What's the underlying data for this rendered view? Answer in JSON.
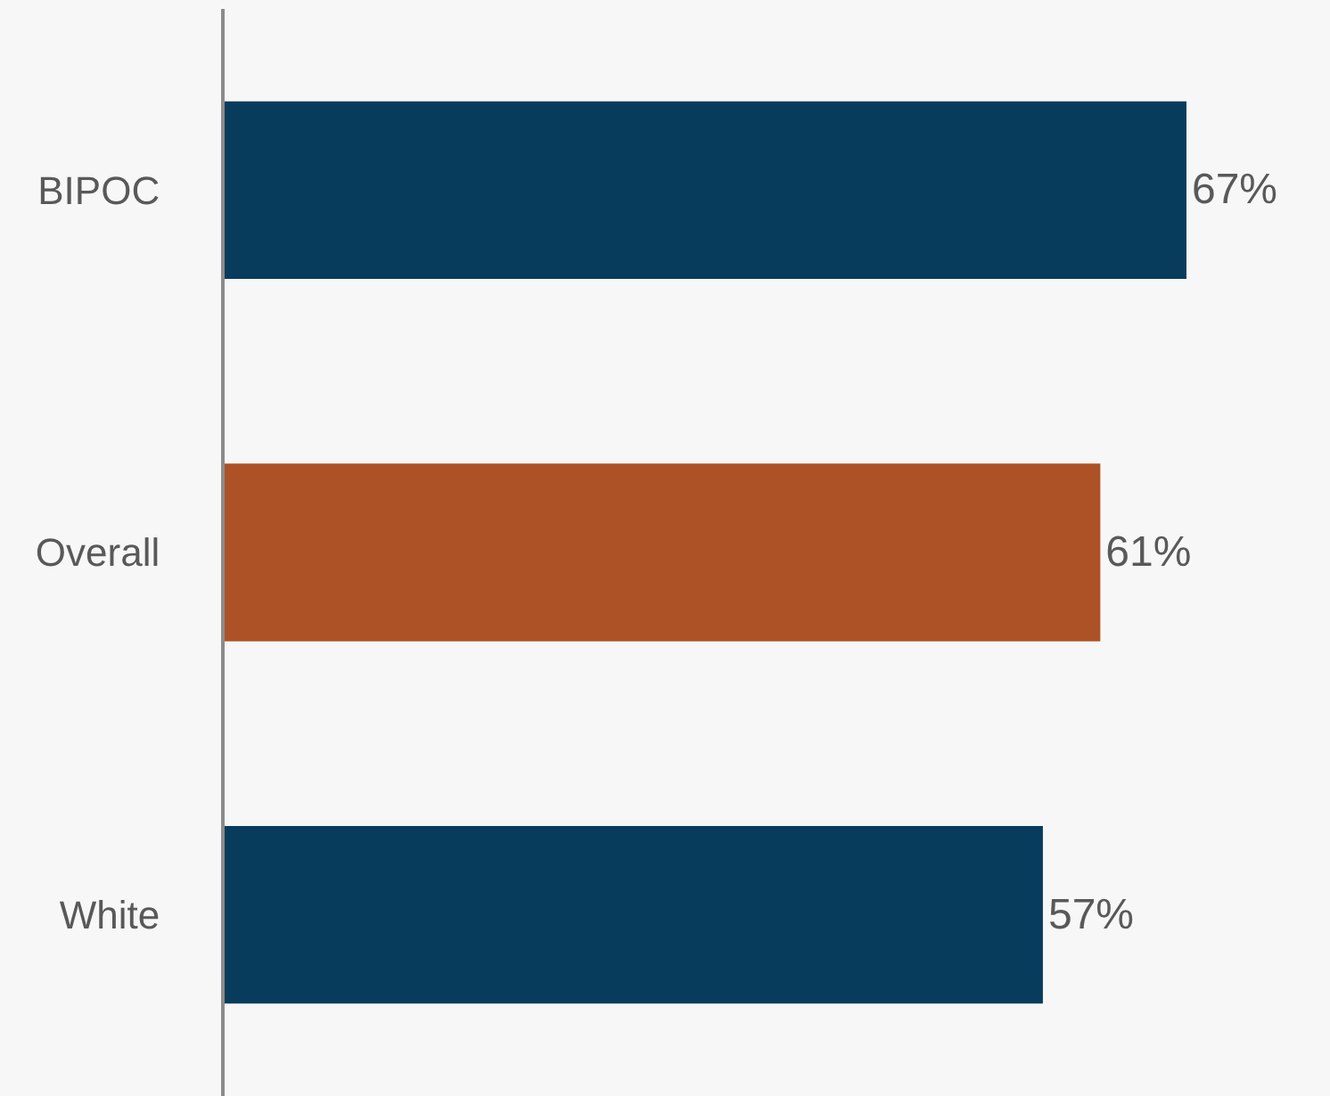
{
  "chart_data": {
    "type": "bar",
    "orientation": "horizontal",
    "categories": [
      "BIPOC",
      "Overall",
      "White"
    ],
    "values": [
      67,
      61,
      57
    ],
    "colors": [
      "#083c5c",
      "#ad5227",
      "#083c5c"
    ],
    "value_labels": [
      "67%",
      "61%",
      "57%"
    ],
    "xlim": [
      0,
      77
    ],
    "tick_labels": "y",
    "grid": false,
    "legend": false
  }
}
